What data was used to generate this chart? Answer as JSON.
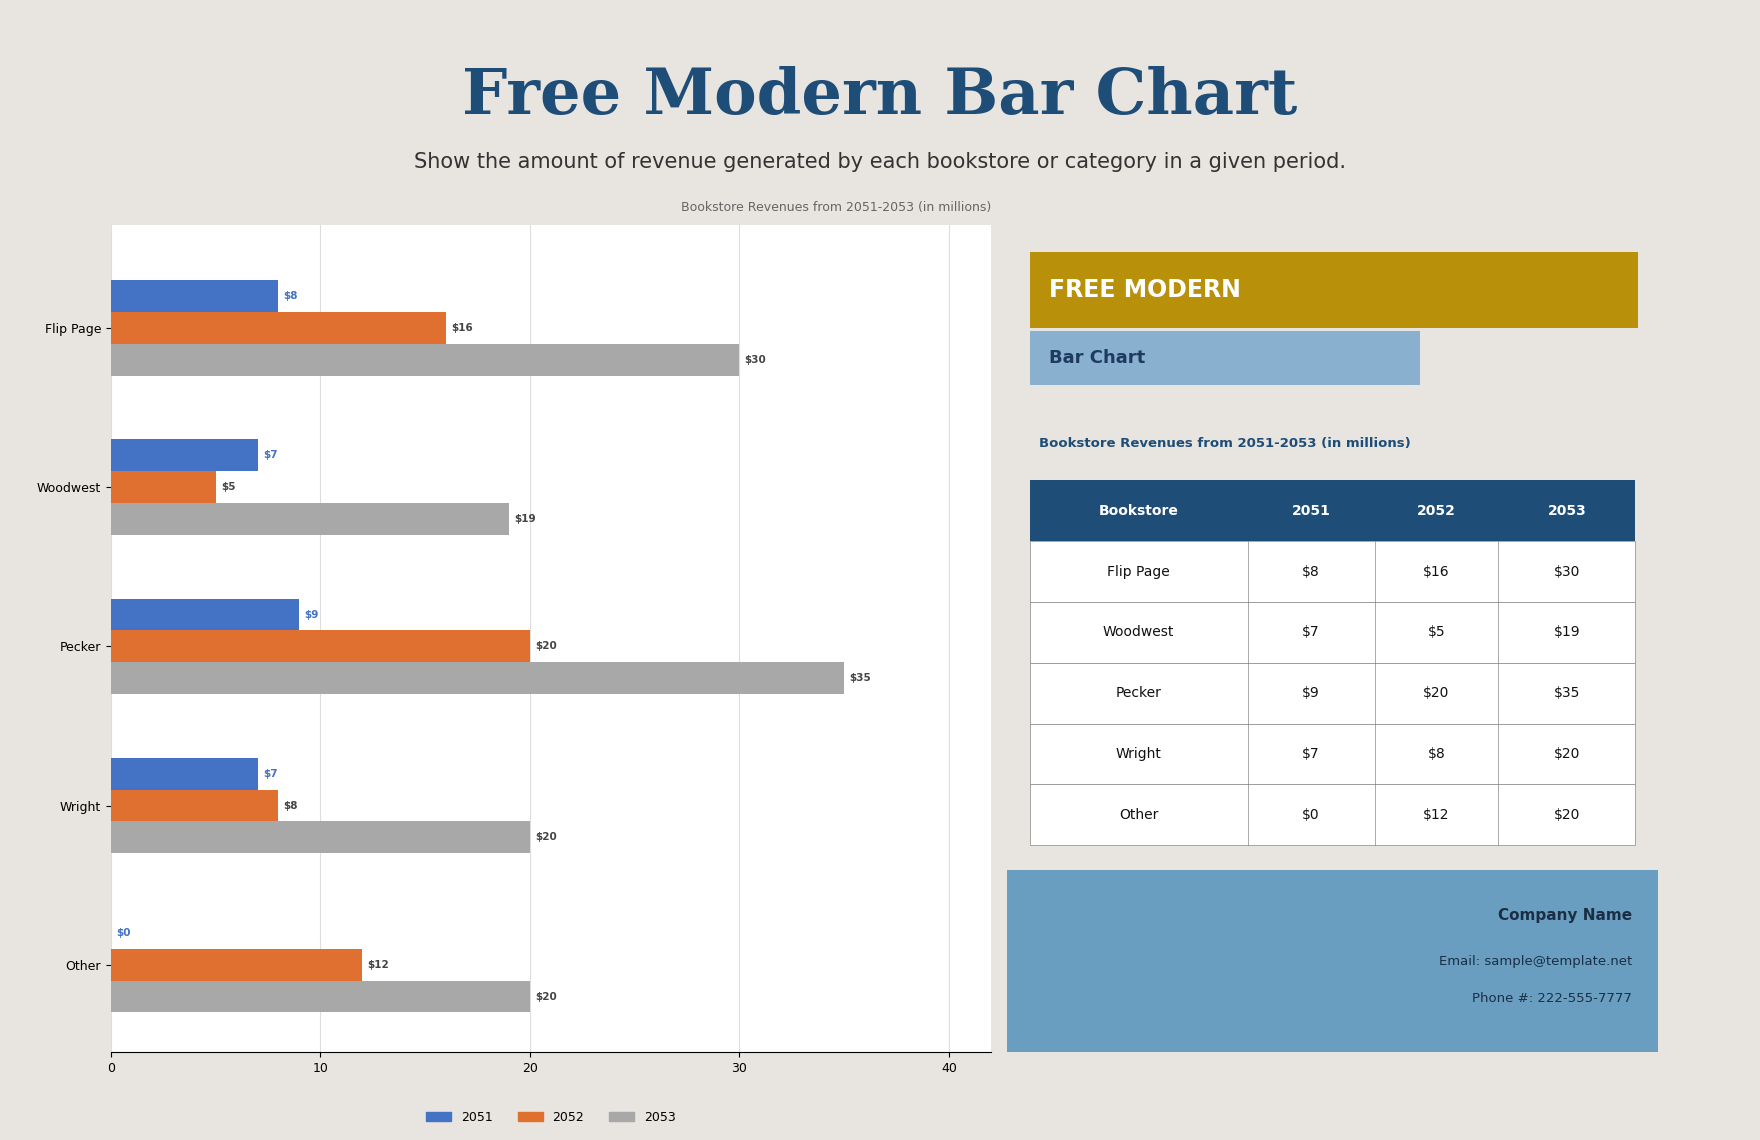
{
  "title": "Free Modern Bar Chart",
  "subtitle": "Show the amount of revenue generated by each bookstore or category in a given period.",
  "background_color": "#e8e4df",
  "outer_border_color": "#1e4d78",
  "inner_bg_color": "#ffffff",
  "right_panel_bg": "#8fb8d8",
  "right_bottom_bg": "#6a9ec0",
  "right_header_gold": "#b8900a",
  "right_header_blue": "#8ab0d0",
  "chart_title": "Bookstore Revenues from 2051-2053 (in millions)",
  "categories": [
    "Other",
    "Wright",
    "Pecker",
    "Woodwest",
    "Flip Page"
  ],
  "year_2051": [
    0,
    7,
    9,
    7,
    8
  ],
  "year_2052": [
    12,
    8,
    20,
    5,
    16
  ],
  "year_2053": [
    20,
    20,
    35,
    19,
    30
  ],
  "color_2051": "#4472c4",
  "color_2052": "#e07030",
  "color_2053": "#a8a8a8",
  "table_header_bg": "#1e4d78",
  "table_header_text": "#ffffff",
  "table_row_text": "#111111",
  "table_title": "Bookstore Revenues from 2051-2053 (in millions)",
  "free_modern_text": "FREE MODERN",
  "bar_chart_text": "Bar Chart",
  "company_name": "Company Name",
  "email": "Email: sample@template.net",
  "phone": "Phone #: 222-555-7777",
  "table_data": [
    [
      "Flip Page",
      "$8",
      "$16",
      "$30"
    ],
    [
      "Woodwest",
      "$7",
      "$5",
      "$19"
    ],
    [
      "Pecker",
      "$9",
      "$20",
      "$35"
    ],
    [
      "Wright",
      "$7",
      "$8",
      "$20"
    ],
    [
      "Other",
      "$0",
      "$12",
      "$20"
    ]
  ],
  "table_headers": [
    "Bookstore",
    "2051",
    "2052",
    "2053"
  ]
}
